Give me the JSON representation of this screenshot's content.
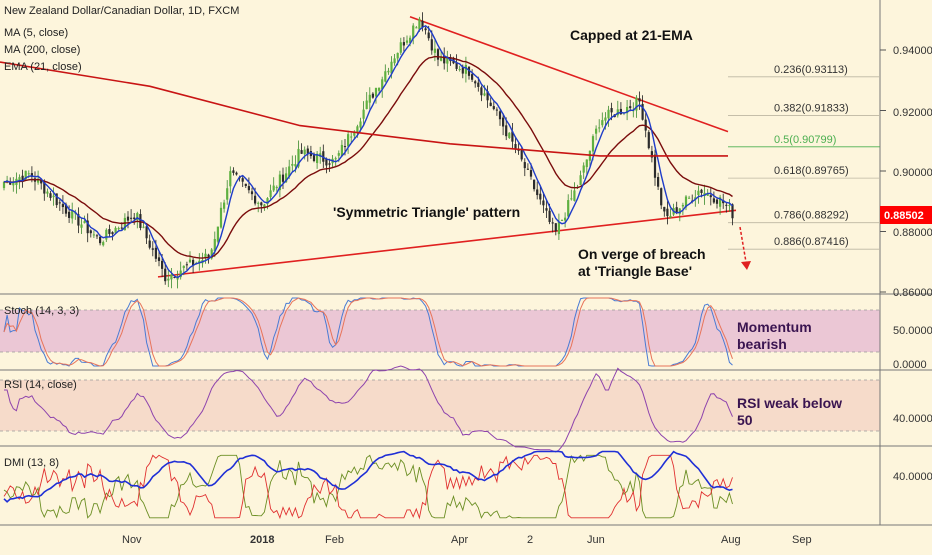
{
  "chart_data": {
    "type": "candlestick",
    "title": "New Zealand Dollar/Canadian Dollar, 1D, FXCM",
    "overlay_legend": [
      "MA (5, close)",
      "MA (200, close)",
      "EMA (21, close)"
    ],
    "x_labels": [
      "Nov",
      "2018",
      "Feb",
      "Apr",
      "2",
      "Jun",
      "Aug",
      "Sep"
    ],
    "price_axis": {
      "ticks": [
        "0.94000",
        "0.92000",
        "0.90000",
        "0.88000",
        "0.86000"
      ],
      "range": [
        0.862,
        0.95
      ],
      "last_price": "0.88502",
      "last_price_color": "#ff0000"
    },
    "key_prices": {
      "start": 0.896,
      "nov_low": 0.865,
      "feb_high": 0.951,
      "may_low": 0.879,
      "jun_high": 0.923,
      "jul_low": 0.885,
      "last": 0.885
    },
    "series": [
      {
        "name": "MA (5, close)",
        "color": "#1f3cc9"
      },
      {
        "name": "MA (200, close)",
        "color": "#c81414",
        "points": [
          0.936,
          0.928,
          0.915,
          0.909,
          0.905,
          0.905
        ]
      },
      {
        "name": "EMA (21, close)",
        "color": "#7a0c0c"
      }
    ],
    "trendlines": {
      "upper": [
        0.951,
        0.913
      ],
      "lower": [
        0.865,
        0.887
      ],
      "color": "#e02020"
    },
    "fibonacci": [
      {
        "label": "0.236(0.93113)",
        "value": 0.93113
      },
      {
        "label": "0.382(0.91833)",
        "value": 0.91833
      },
      {
        "label": "0.5(0.90799)",
        "value": 0.90799,
        "color": "#4caf50"
      },
      {
        "label": "0.618(0.89765)",
        "value": 0.89765
      },
      {
        "label": "0.786(0.88292)",
        "value": 0.88292
      },
      {
        "label": "0.886(0.87416)",
        "value": 0.87416
      }
    ],
    "annotations": {
      "capped": "Capped at 21-EMA",
      "pattern": "'Symmetric Triangle' pattern",
      "breach_1": "On verge of breach",
      "breach_2": "at 'Triangle Base'"
    },
    "stoch": {
      "title": "Stoch (14, 3, 3)",
      "ticks": [
        "50.0000",
        "0.0000"
      ],
      "range": [
        0,
        100
      ],
      "annotation_1": "Momentum",
      "annotation_2": "bearish",
      "band": [
        20,
        80
      ],
      "k_color": "#4a7bd4",
      "d_color": "#e8745a"
    },
    "rsi": {
      "title": "RSI (14, close)",
      "ticks": [
        "40.0000"
      ],
      "range": [
        10,
        90
      ],
      "annotation_1": "RSI weak below",
      "annotation_2": "50",
      "band": [
        30,
        70
      ],
      "color": "#8e44ad"
    },
    "dmi": {
      "title": "DMI (13, 8)",
      "ticks": [
        "40.0000"
      ],
      "range": [
        0,
        60
      ],
      "adx_color": "#1f2fd6",
      "plus_color": "#6b8e23",
      "minus_color": "#e03030"
    }
  }
}
